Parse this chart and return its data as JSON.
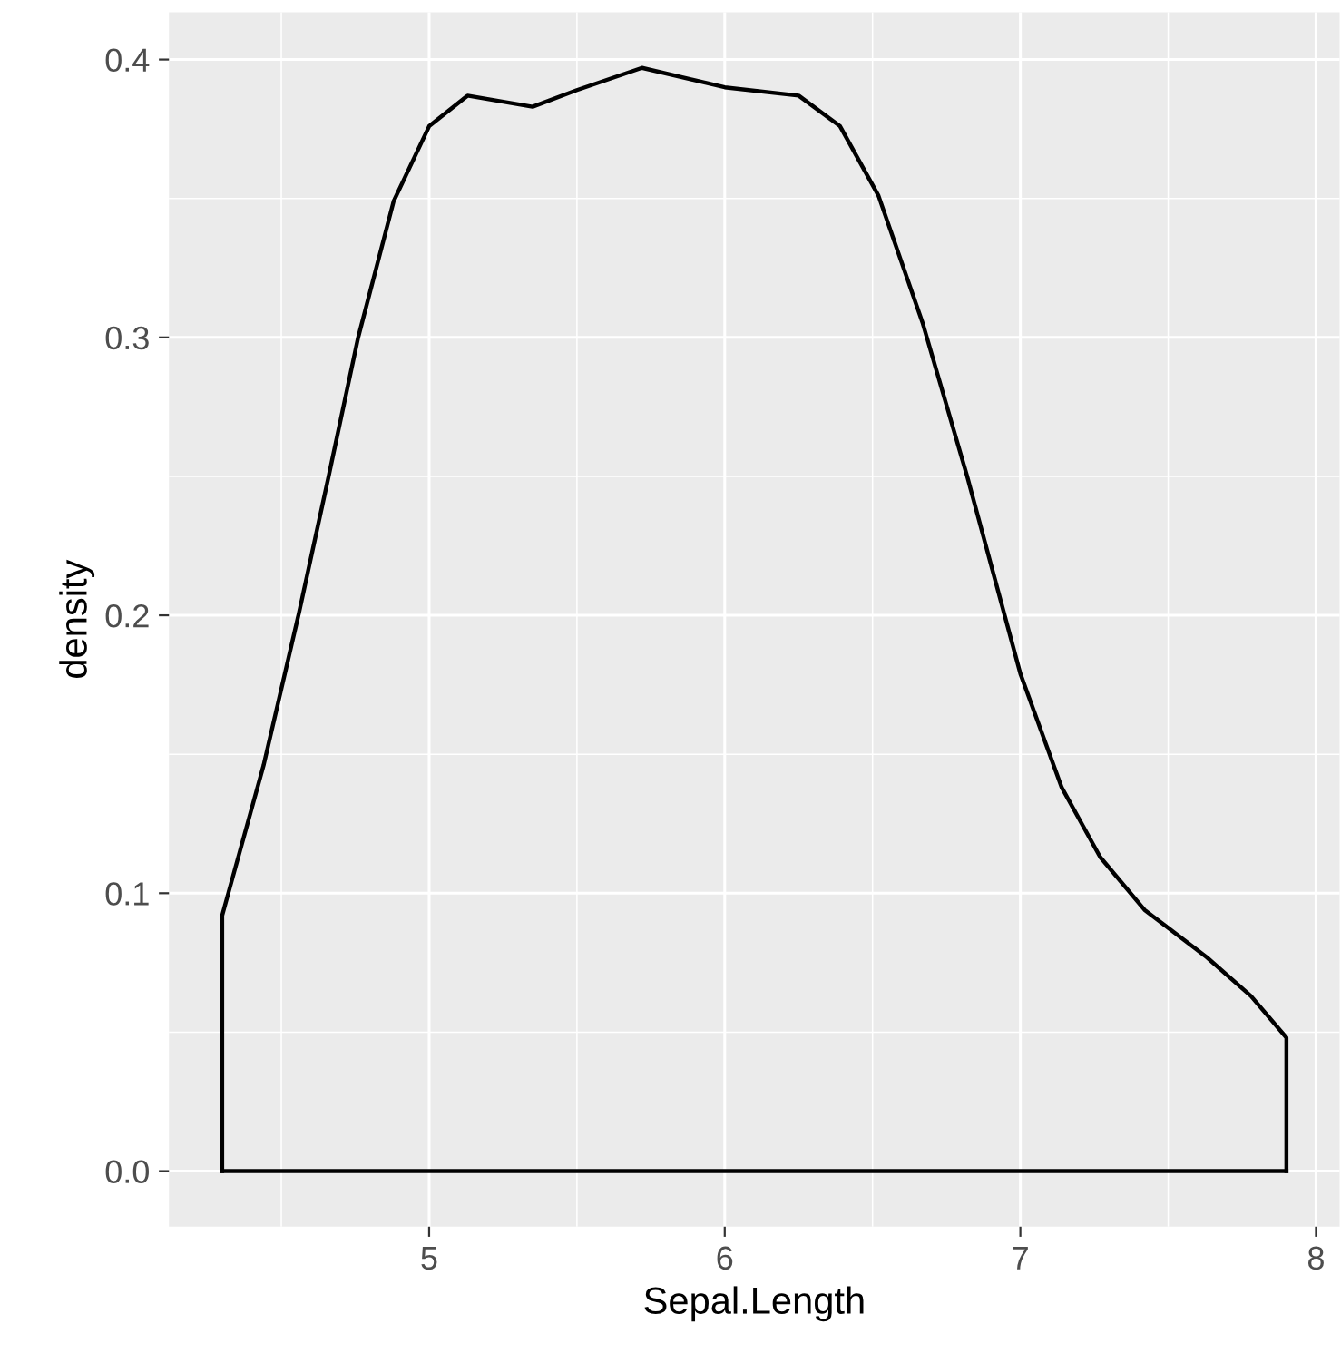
{
  "chart_data": {
    "type": "line",
    "xlabel": "Sepal.Length",
    "ylabel": "density",
    "x": [
      4.3,
      4.3,
      4.44,
      4.56,
      4.66,
      4.76,
      4.88,
      5.0,
      5.13,
      5.35,
      5.5,
      5.72,
      6.0,
      6.25,
      6.39,
      6.52,
      6.67,
      6.82,
      7.0,
      7.14,
      7.27,
      7.42,
      7.63,
      7.78,
      7.9,
      7.9
    ],
    "series": [
      {
        "color": "#000000",
        "values": [
          0,
          0.092,
          0.146,
          0.201,
          0.25,
          0.3,
          0.349,
          0.376,
          0.387,
          0.383,
          0.389,
          0.397,
          0.39,
          0.387,
          0.376,
          0.351,
          0.305,
          0.25,
          0.179,
          0.138,
          0.113,
          0.094,
          0.077,
          0.063,
          0.048,
          0
        ]
      },
      {
        "color": "#000000",
        "x": [
          4.3,
          7.9
        ],
        "values": [
          0,
          0
        ]
      }
    ],
    "xlim": [
      4.12,
      8.08
    ],
    "ylim": [
      -0.02,
      0.417
    ],
    "xticks": [
      5,
      6,
      7,
      8
    ],
    "yticks": [
      {
        "value": 0,
        "label": "0.0"
      },
      {
        "value": 0.1,
        "label": "0.1"
      },
      {
        "value": 0.2,
        "label": "0.2"
      },
      {
        "value": 0.3,
        "label": "0.3"
      },
      {
        "value": 0.4,
        "label": "0.4"
      }
    ],
    "grid": true,
    "legend": false
  }
}
